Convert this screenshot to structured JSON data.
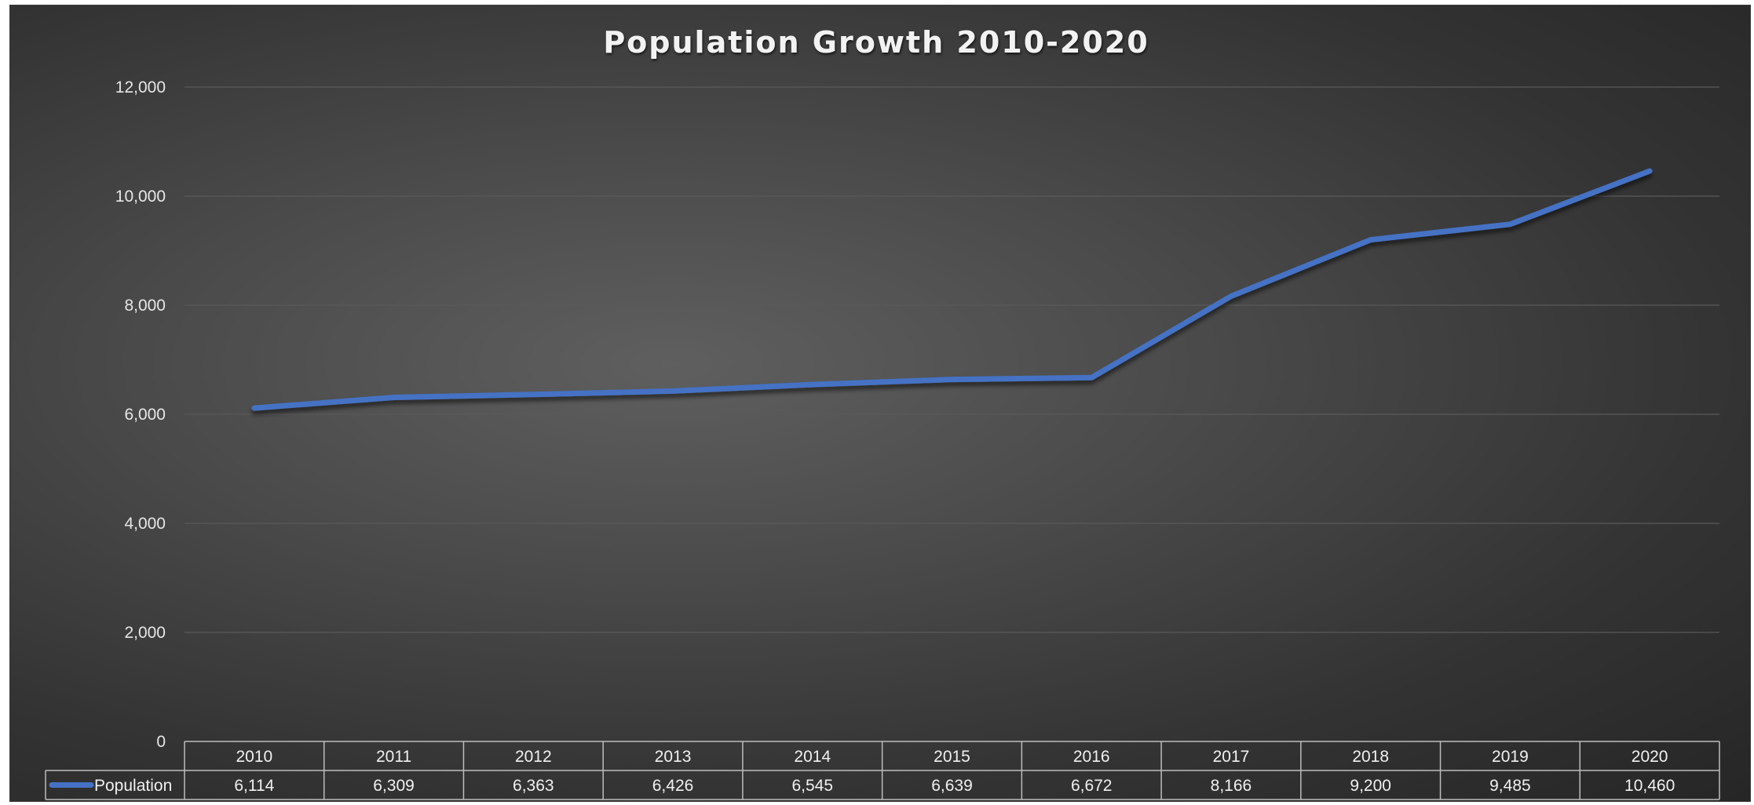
{
  "chart_data": {
    "type": "line",
    "title": "Population Growth 2010-2020",
    "xlabel": "",
    "ylabel": "",
    "categories": [
      "2010",
      "2011",
      "2012",
      "2013",
      "2014",
      "2015",
      "2016",
      "2017",
      "2018",
      "2019",
      "2020"
    ],
    "series": [
      {
        "name": "Population",
        "values": [
          6114,
          6309,
          6363,
          6426,
          6545,
          6639,
          6672,
          8166,
          9200,
          9485,
          10460
        ],
        "display_values": [
          "6,114",
          "6,309",
          "6,363",
          "6,426",
          "6,545",
          "6,639",
          "6,672",
          "8,166",
          "9,200",
          "9,485",
          "10,460"
        ],
        "color": "#4472c4"
      }
    ],
    "ylim": [
      0,
      12000
    ],
    "y_ticks": [
      0,
      2000,
      4000,
      6000,
      8000,
      10000,
      12000
    ],
    "y_tick_labels": [
      "0",
      "2,000",
      "4,000",
      "6,000",
      "8,000",
      "10,000",
      "12,000"
    ],
    "grid": true,
    "legend": "data-table",
    "data_table": true
  },
  "colors": {
    "background": "#3c3c3c",
    "line": "#4472c4",
    "text": "#f0f0f0",
    "grid": "#5a5a5a"
  }
}
